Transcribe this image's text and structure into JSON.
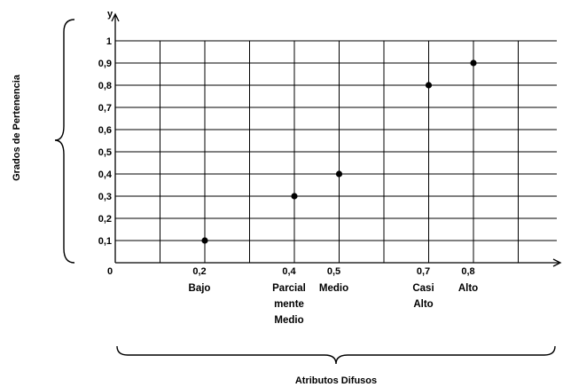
{
  "chart_data": {
    "type": "scatter",
    "ylabel": "Grados de Pertenencia",
    "xlabel": "Atributos Difusos",
    "y_axis_letter": "y",
    "origin_label": "0",
    "xlim": [
      0,
      1.0
    ],
    "ylim": [
      0,
      1.0
    ],
    "grid": true,
    "y_ticks": [
      "0,1",
      "0,2",
      "0,3",
      "0,4",
      "0,5",
      "0,6",
      "0,7",
      "0,8",
      "0,9",
      "1"
    ],
    "y_tick_values": [
      0.1,
      0.2,
      0.3,
      0.4,
      0.5,
      0.6,
      0.7,
      0.8,
      0.9,
      1.0
    ],
    "x_ticks": [
      "0,2",
      "0,4",
      "0,5",
      "0,7",
      "0,8"
    ],
    "x_tick_values": [
      0.2,
      0.4,
      0.5,
      0.7,
      0.8
    ],
    "categories": [
      {
        "x": 0.2,
        "lines": [
          "Bajo"
        ]
      },
      {
        "x": 0.4,
        "lines": [
          "Parcial",
          "mente",
          "Medio"
        ]
      },
      {
        "x": 0.5,
        "lines": [
          "Medio"
        ]
      },
      {
        "x": 0.7,
        "lines": [
          "Casi",
          "Alto"
        ]
      },
      {
        "x": 0.8,
        "lines": [
          "Alto"
        ]
      }
    ],
    "points": [
      {
        "x": 0.2,
        "y": 0.1
      },
      {
        "x": 0.4,
        "y": 0.3
      },
      {
        "x": 0.5,
        "y": 0.4
      },
      {
        "x": 0.7,
        "y": 0.8
      },
      {
        "x": 0.8,
        "y": 0.9
      }
    ]
  }
}
